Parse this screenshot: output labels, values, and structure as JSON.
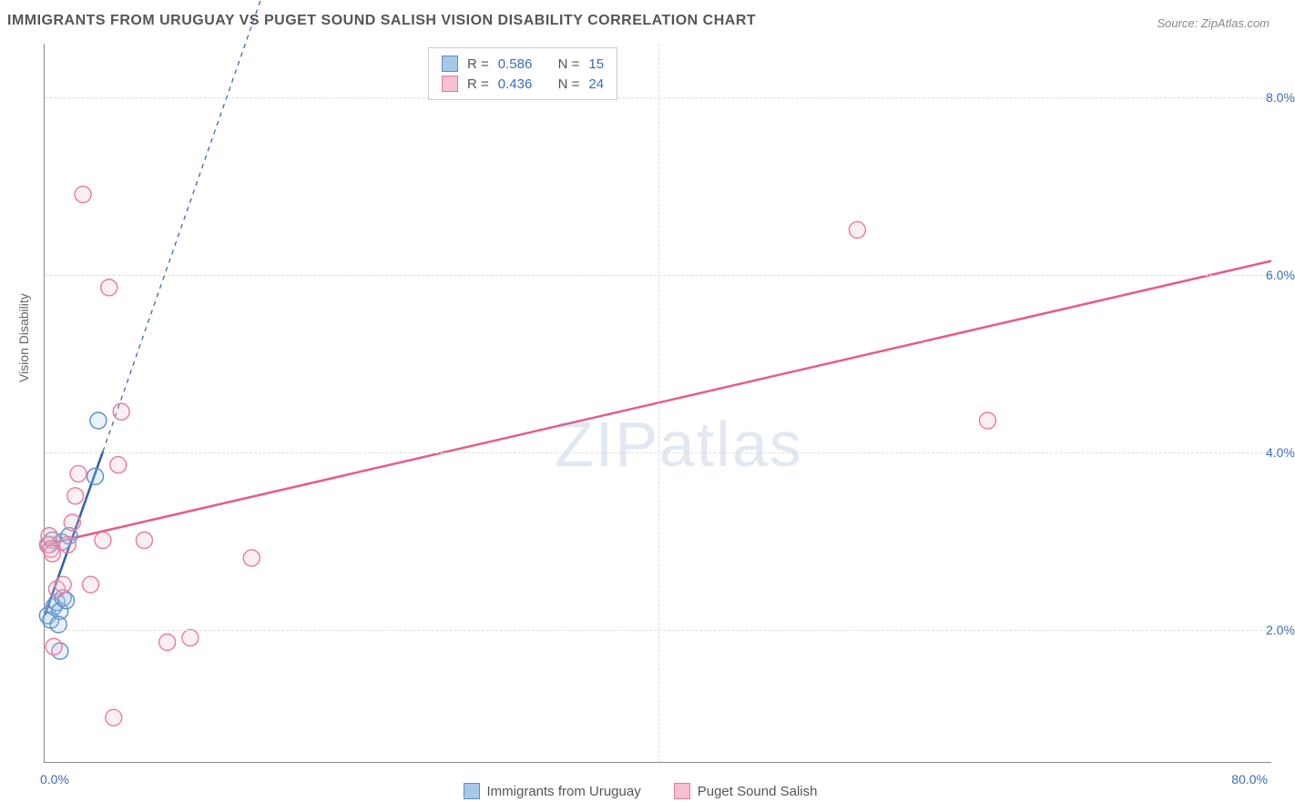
{
  "title": "IMMIGRANTS FROM URUGUAY VS PUGET SOUND SALISH VISION DISABILITY CORRELATION CHART",
  "source": "Source: ZipAtlas.com",
  "y_axis_label": "Vision Disability",
  "watermark": {
    "part1": "ZIP",
    "part2": "atlas"
  },
  "chart": {
    "type": "scatter",
    "background_color": "#ffffff",
    "grid_color": "#dddddd",
    "axis_color": "#888888",
    "xlim": [
      0,
      80
    ],
    "ylim": [
      0.5,
      8.6
    ],
    "x_ticks": [
      0,
      40,
      80
    ],
    "x_tick_labels": [
      "0.0%",
      "",
      "80.0%"
    ],
    "y_ticks": [
      2,
      4,
      6,
      8
    ],
    "y_tick_labels": [
      "2.0%",
      "4.0%",
      "6.0%",
      "8.0%"
    ],
    "tick_label_color": "#3b6db5",
    "tick_label_fontsize": 14,
    "title_fontsize": 16,
    "title_color": "#555555",
    "marker_radius": 9,
    "marker_fill_opacity": 0.25,
    "marker_stroke_width": 1.4,
    "series": [
      {
        "name": "Immigrants from Uruguay",
        "color_fill": "#a8c8e8",
        "color_stroke": "#5a8fc8",
        "R": "0.586",
        "N": "15",
        "points": [
          [
            0.2,
            2.15
          ],
          [
            0.4,
            2.1
          ],
          [
            0.6,
            2.25
          ],
          [
            0.8,
            2.3
          ],
          [
            1.0,
            2.2
          ],
          [
            1.2,
            2.35
          ],
          [
            1.4,
            2.32
          ],
          [
            0.3,
            2.95
          ],
          [
            0.5,
            3.0
          ],
          [
            1.1,
            2.98
          ],
          [
            1.6,
            3.05
          ],
          [
            3.3,
            3.72
          ],
          [
            3.5,
            4.35
          ],
          [
            1.0,
            1.75
          ],
          [
            0.9,
            2.05
          ]
        ],
        "trend": {
          "x1": 0,
          "y1": 2.15,
          "x2": 3.8,
          "y2": 4.0,
          "x2_ext": 24,
          "y2_ext": 14,
          "color": "#2d5fa8",
          "width": 2.5,
          "solid_until_x": 3.8,
          "dash": "5,5"
        }
      },
      {
        "name": "Puget Sound Salish",
        "color_fill": "#f5c0d0",
        "color_stroke": "#e87a9b",
        "R": "0.436",
        "N": "24",
        "points": [
          [
            0.2,
            2.95
          ],
          [
            0.3,
            3.05
          ],
          [
            0.4,
            2.9
          ],
          [
            0.5,
            2.85
          ],
          [
            0.8,
            2.45
          ],
          [
            1.2,
            2.5
          ],
          [
            1.5,
            2.95
          ],
          [
            1.8,
            3.2
          ],
          [
            2.0,
            3.5
          ],
          [
            2.2,
            3.75
          ],
          [
            3.0,
            2.5
          ],
          [
            3.8,
            3.0
          ],
          [
            4.8,
            3.85
          ],
          [
            6.5,
            3.0
          ],
          [
            8.0,
            1.85
          ],
          [
            9.5,
            1.9
          ],
          [
            13.5,
            2.8
          ],
          [
            4.2,
            5.85
          ],
          [
            5.0,
            4.45
          ],
          [
            2.5,
            6.9
          ],
          [
            4.5,
            1.0
          ],
          [
            0.6,
            1.8
          ],
          [
            53.0,
            6.5
          ],
          [
            61.5,
            4.35
          ]
        ],
        "trend": {
          "x1": 0,
          "y1": 2.95,
          "x2": 80,
          "y2": 6.15,
          "color": "#e85a8a",
          "width": 2.5
        }
      }
    ]
  },
  "legend_top": {
    "rows": [
      {
        "swatch_fill": "#a8c8e8",
        "swatch_stroke": "#5a8fc8",
        "r_label": "R =",
        "r_val": "0.586",
        "n_label": "N =",
        "n_val": "15"
      },
      {
        "swatch_fill": "#f5c0d0",
        "swatch_stroke": "#e87a9b",
        "r_label": "R =",
        "r_val": "0.436",
        "n_label": "N =",
        "n_val": "24"
      }
    ]
  },
  "legend_bottom": {
    "items": [
      {
        "swatch_fill": "#a8c8e8",
        "swatch_stroke": "#5a8fc8",
        "label": "Immigrants from Uruguay"
      },
      {
        "swatch_fill": "#f5c0d0",
        "swatch_stroke": "#e87a9b",
        "label": "Puget Sound Salish"
      }
    ]
  }
}
